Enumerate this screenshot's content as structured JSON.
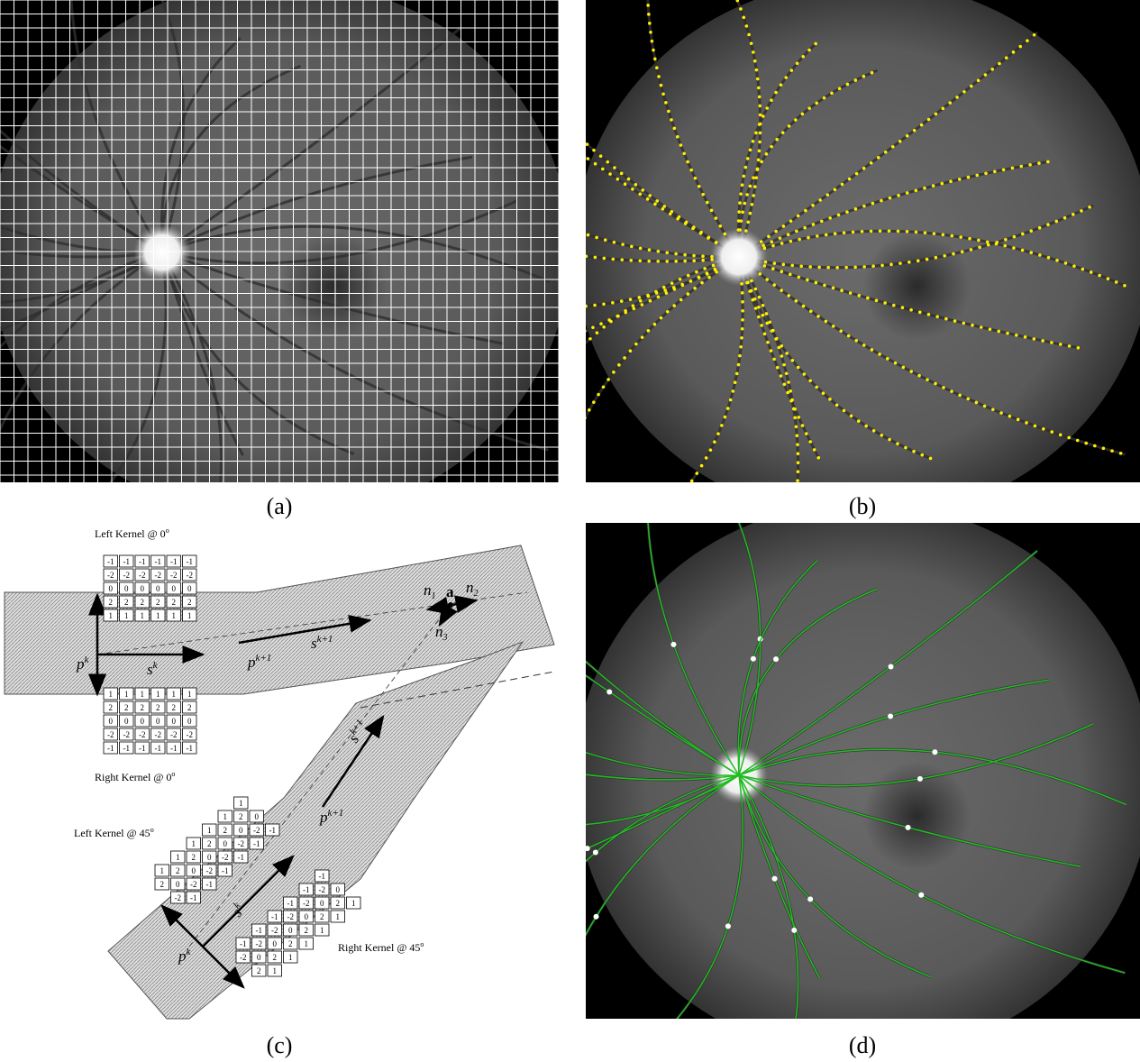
{
  "panels": [
    {
      "caption": "(a)"
    },
    {
      "caption": "(b)"
    },
    {
      "caption": "(c)"
    },
    {
      "caption": "(d)"
    }
  ],
  "diagram": {
    "kernels": [
      {
        "label": "Left Kernel @ 0",
        "sup": "o",
        "rows": [
          [
            -1,
            -1,
            -1,
            -1,
            -1,
            -1
          ],
          [
            -2,
            -2,
            -2,
            -2,
            -2,
            -2
          ],
          [
            0,
            0,
            0,
            0,
            0,
            0
          ],
          [
            2,
            2,
            2,
            2,
            2,
            2
          ],
          [
            1,
            1,
            1,
            1,
            1,
            1
          ]
        ]
      },
      {
        "label": "Right Kernel @ 0",
        "sup": "o",
        "rows": [
          [
            1,
            1,
            1,
            1,
            1,
            1
          ],
          [
            2,
            2,
            2,
            2,
            2,
            2
          ],
          [
            0,
            0,
            0,
            0,
            0,
            0
          ],
          [
            -2,
            -2,
            -2,
            -2,
            -2,
            -2
          ],
          [
            -1,
            -1,
            -1,
            -1,
            -1,
            -1
          ]
        ]
      },
      {
        "label": "Left Kernel @ 45",
        "sup": "o",
        "rows": [
          [
            1
          ],
          [
            1,
            2,
            0
          ],
          [
            1,
            2,
            0,
            -2,
            -1
          ],
          [
            1,
            2,
            0,
            -2,
            -1
          ],
          [
            1,
            2,
            0,
            -2,
            -1
          ],
          [
            1,
            2,
            0,
            -2,
            -1
          ],
          [
            2,
            0,
            -2,
            -1
          ],
          [
            -2,
            -1
          ]
        ]
      },
      {
        "label": "Right Kernel @ 45",
        "sup": "o",
        "rows": [
          [
            -1
          ],
          [
            -1,
            -2,
            0
          ],
          [
            -1,
            -2,
            0,
            2,
            1
          ],
          [
            -1,
            -2,
            0,
            2,
            1
          ],
          [
            -1,
            -2,
            0,
            2,
            1
          ],
          [
            -1,
            -2,
            0,
            2,
            1
          ],
          [
            -2,
            0,
            2,
            1
          ],
          [
            2,
            1
          ]
        ]
      }
    ],
    "vector_labels": [
      {
        "base": "p",
        "sup": "k"
      },
      {
        "base": "s",
        "sup": "k"
      },
      {
        "base": "p",
        "sup": "k+1"
      },
      {
        "base": "s",
        "sup": "k+1"
      },
      {
        "base": "a"
      },
      {
        "base": "n",
        "sub": "1"
      },
      {
        "base": "n",
        "sub": "2"
      },
      {
        "base": "n",
        "sub": "3"
      },
      {
        "base": "s",
        "sup": "k+1"
      },
      {
        "base": "p",
        "sup": "k+1"
      },
      {
        "base": "s",
        "sup": "k"
      },
      {
        "base": "p",
        "sup": "k"
      }
    ]
  }
}
